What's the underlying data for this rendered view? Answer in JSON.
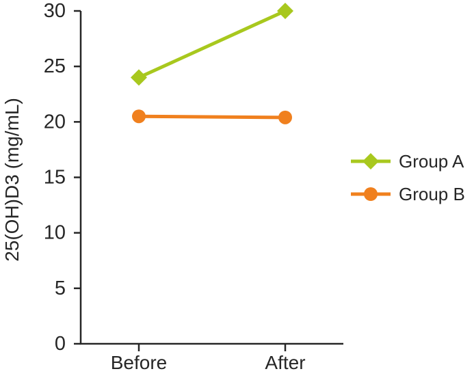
{
  "chart_data": {
    "type": "line",
    "title": "",
    "categories": [
      "Before",
      "After"
    ],
    "series": [
      {
        "name": "Group A",
        "values": [
          24,
          30
        ],
        "color": "#A8C81E",
        "marker": "diamond"
      },
      {
        "name": "Group B",
        "values": [
          20.5,
          20.4
        ],
        "color": "#F0801E",
        "marker": "circle"
      }
    ],
    "xlabel": "",
    "ylabel": "25(OH)D3 (mg/mL)",
    "ylim": [
      0,
      30
    ],
    "yticks": [
      0,
      5,
      10,
      15,
      20,
      25,
      30
    ],
    "grid": false,
    "legend_position": "right"
  },
  "colors": {
    "background": "#FFFFFF",
    "axis": "#262626",
    "text": "#262626",
    "group_a": "#A8C81E",
    "group_b": "#F0801E"
  }
}
